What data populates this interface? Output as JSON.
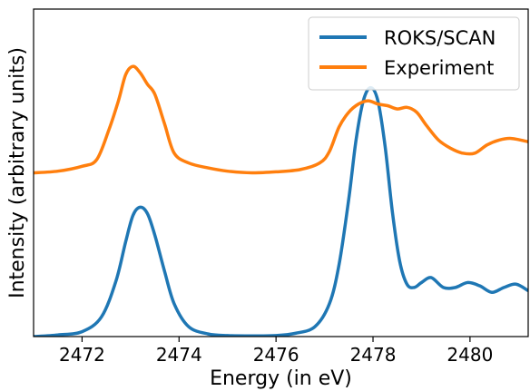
{
  "chart_data": {
    "type": "line",
    "xlabel": "Energy (in eV)",
    "ylabel": "Intensity (arbitrary units)",
    "xlim": [
      2471,
      2481.2
    ],
    "ylim": [
      0,
      1
    ],
    "x_ticks": [
      2472,
      2474,
      2476,
      2478,
      2480
    ],
    "x_tick_labels": [
      "2472",
      "2474",
      "2476",
      "2478",
      "2480"
    ],
    "y_ticks_shown": false,
    "grid": false,
    "legend_position": "top-right",
    "series": [
      {
        "name": "ROKS/SCAN",
        "color": "#1f77b4",
        "x": [
          2471.0,
          2471.5,
          2472.0,
          2472.4,
          2472.7,
          2472.9,
          2473.05,
          2473.2,
          2473.35,
          2473.5,
          2473.7,
          2473.9,
          2474.2,
          2474.6,
          2475.0,
          2475.5,
          2476.0,
          2476.4,
          2476.8,
          2477.1,
          2477.3,
          2477.5,
          2477.65,
          2477.8,
          2477.95,
          2478.1,
          2478.25,
          2478.4,
          2478.55,
          2478.7,
          2478.85,
          2479.0,
          2479.2,
          2479.45,
          2479.7,
          2479.95,
          2480.2,
          2480.45,
          2480.7,
          2480.95,
          2481.2
        ],
        "y": [
          0.0,
          0.005,
          0.015,
          0.06,
          0.17,
          0.29,
          0.37,
          0.395,
          0.375,
          0.31,
          0.2,
          0.1,
          0.03,
          0.008,
          0.003,
          0.002,
          0.003,
          0.01,
          0.03,
          0.1,
          0.22,
          0.42,
          0.6,
          0.72,
          0.76,
          0.72,
          0.58,
          0.38,
          0.23,
          0.16,
          0.15,
          0.165,
          0.18,
          0.15,
          0.15,
          0.165,
          0.155,
          0.135,
          0.15,
          0.16,
          0.14
        ]
      },
      {
        "name": "Experiment",
        "color": "#ff7f0e",
        "x": [
          2471.0,
          2471.5,
          2472.0,
          2472.3,
          2472.55,
          2472.75,
          2472.9,
          2473.05,
          2473.2,
          2473.35,
          2473.5,
          2473.7,
          2473.9,
          2474.2,
          2474.6,
          2475.0,
          2475.5,
          2476.0,
          2476.5,
          2476.9,
          2477.1,
          2477.3,
          2477.5,
          2477.7,
          2477.9,
          2478.1,
          2478.3,
          2478.5,
          2478.7,
          2478.9,
          2479.1,
          2479.35,
          2479.6,
          2479.85,
          2480.1,
          2480.35,
          2480.6,
          2480.85,
          2481.2
        ],
        "y": [
          0.5,
          0.505,
          0.52,
          0.54,
          0.63,
          0.72,
          0.8,
          0.825,
          0.805,
          0.77,
          0.74,
          0.65,
          0.56,
          0.53,
          0.515,
          0.505,
          0.5,
          0.503,
          0.51,
          0.53,
          0.565,
          0.64,
          0.685,
          0.71,
          0.72,
          0.71,
          0.705,
          0.695,
          0.7,
          0.685,
          0.645,
          0.6,
          0.575,
          0.56,
          0.56,
          0.585,
          0.6,
          0.605,
          0.595
        ]
      }
    ]
  }
}
